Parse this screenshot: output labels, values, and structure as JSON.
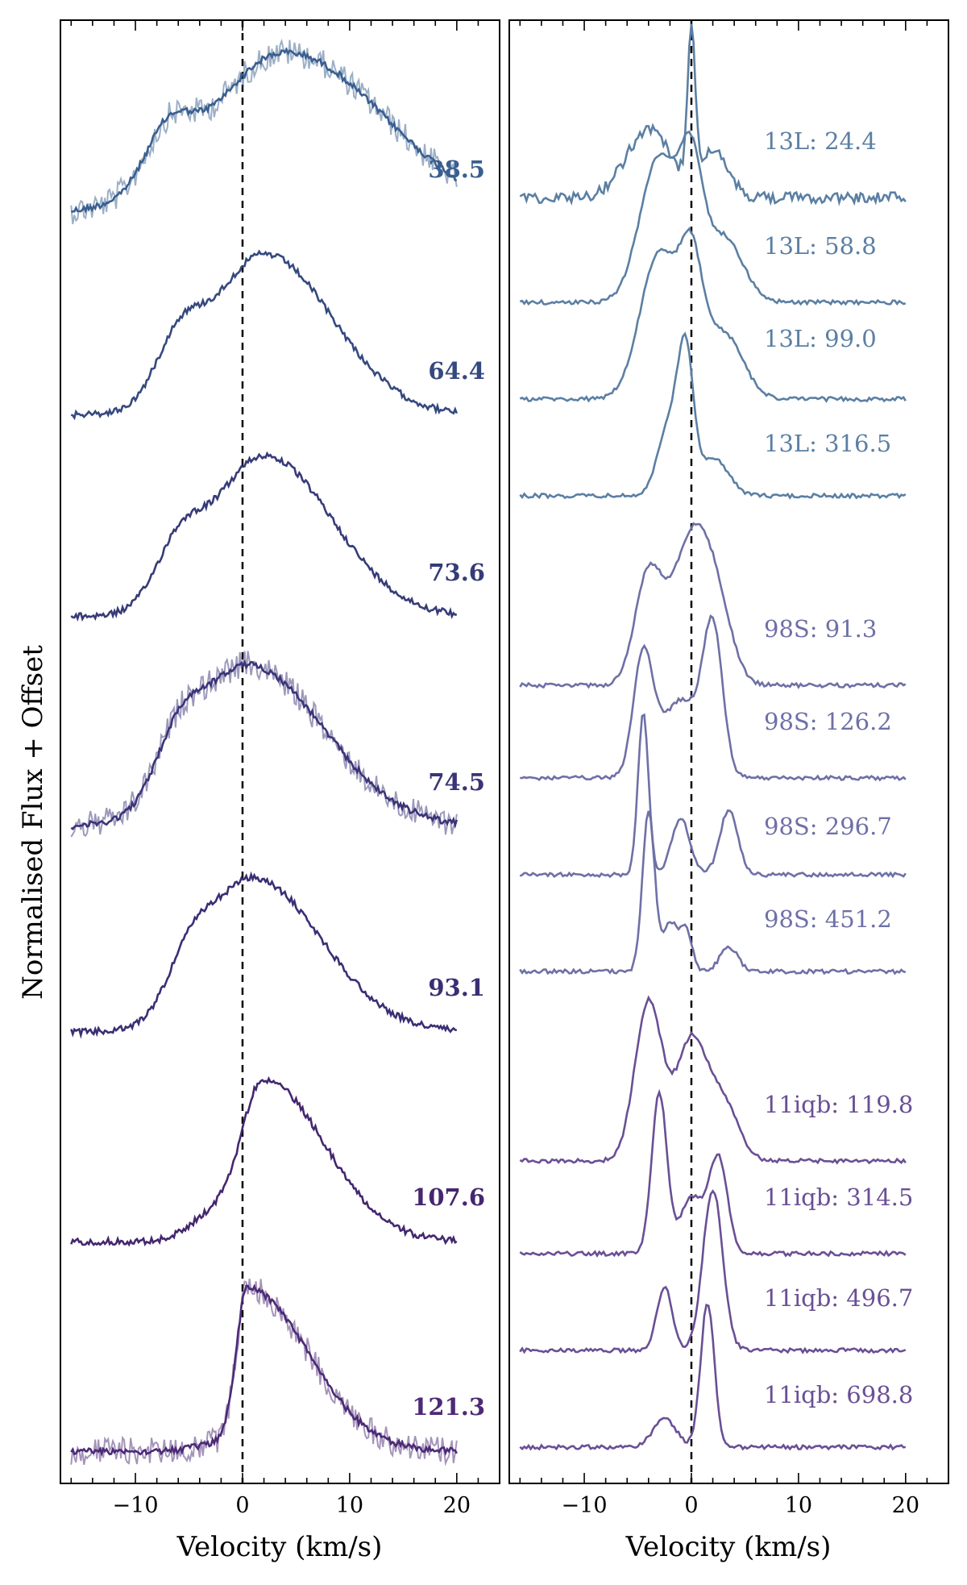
{
  "figure": {
    "ylabel": "Normalised Flux + Offset",
    "colors": {
      "c1": "#3a5f8f",
      "c2": "#35497f",
      "c3": "#363b78",
      "c4": "#3a3478",
      "c5": "#3a2e74",
      "c6": "#44276f",
      "c7": "#4c2a76",
      "r1": "#5b7fa3",
      "r2": "#6e70a6",
      "r3": "#6a4f95"
    }
  },
  "chart_data": [
    {
      "type": "line",
      "panel": "left",
      "xlabel": "Velocity (km/s)",
      "ylabel": "Normalised Flux + Offset",
      "xlim": [
        -17,
        24
      ],
      "xticks": [
        -10,
        0,
        10,
        20
      ],
      "xtick_labels": [
        "−10",
        "0",
        "10",
        "20"
      ],
      "reference_line_x": 0,
      "series": [
        {
          "name": "38.5",
          "label": "38.5",
          "color": "c1",
          "noisy": true,
          "peak": 4,
          "shoulder": [
            -7,
            0.6
          ],
          "width_blue": 10,
          "width_red": 13,
          "base": 0
        },
        {
          "name": "64.4",
          "label": "64.4",
          "color": "c2",
          "noisy": false,
          "peak": 2,
          "shoulder": [
            -6,
            0.65
          ],
          "width_blue": 7,
          "width_red": 9,
          "base": 1
        },
        {
          "name": "73.6",
          "label": "73.6",
          "color": "c3",
          "noisy": false,
          "peak": 2,
          "shoulder": [
            -6,
            0.6
          ],
          "width_blue": 7,
          "width_red": 9,
          "base": 2
        },
        {
          "name": "74.5",
          "label": "74.5",
          "color": "c4",
          "noisy": true,
          "peak": 0.5,
          "shoulder": [
            -6,
            0.6
          ],
          "width_blue": 7,
          "width_red": 10,
          "base": 3
        },
        {
          "name": "93.1",
          "label": "93.1",
          "color": "c5",
          "noisy": false,
          "peak": 1,
          "shoulder": [
            -5,
            0.6
          ],
          "width_blue": 6,
          "width_red": 9,
          "base": 4
        },
        {
          "name": "107.6",
          "label": "107.6",
          "color": "c6",
          "noisy": false,
          "peak": 2,
          "shoulder": [
            -3,
            0.3
          ],
          "width_blue": 3,
          "width_red": 8,
          "base": 5
        },
        {
          "name": "121.3",
          "label": "121.3",
          "color": "c7",
          "noisy": true,
          "peak": 0.5,
          "shoulder": [
            -2,
            0.1
          ],
          "width_blue": 1.5,
          "width_red": 8,
          "base": 6
        }
      ]
    },
    {
      "type": "line",
      "panel": "right",
      "xlabel": "Velocity (km/s)",
      "xlim": [
        -17,
        24
      ],
      "xticks": [
        -10,
        0,
        10,
        20
      ],
      "xtick_labels": [
        "−10",
        "0",
        "10",
        "20"
      ],
      "reference_line_x": 0,
      "series": [
        {
          "name": "13L: 24.4",
          "label": "13L: 24.4",
          "color": "r1",
          "components": [
            [
              -4,
              3,
              0.45
            ],
            [
              0,
              0.5,
              1.0
            ],
            [
              2,
              2,
              0.3
            ]
          ]
        },
        {
          "name": "13L: 58.8",
          "label": "13L: 58.8",
          "color": "r1",
          "components": [
            [
              -3,
              2.5,
              1.0
            ],
            [
              0,
              1.5,
              0.8
            ],
            [
              3,
              2.5,
              0.45
            ]
          ]
        },
        {
          "name": "13L: 99.0",
          "label": "13L: 99.0",
          "color": "r1",
          "components": [
            [
              -3,
              2.5,
              1.0
            ],
            [
              0,
              1.5,
              0.8
            ],
            [
              3,
              2.5,
              0.45
            ]
          ]
        },
        {
          "name": "13L: 316.5",
          "label": "13L: 316.5",
          "color": "r1",
          "components": [
            [
              -2,
              1.5,
              0.6
            ],
            [
              -0.5,
              1.0,
              1.0
            ],
            [
              2,
              2,
              0.3
            ]
          ]
        },
        {
          "name": "98S: 91.3",
          "label": "98S: 91.3",
          "color": "r2",
          "components": [
            [
              -4,
              1.8,
              0.75
            ],
            [
              0,
              2.5,
              1.0
            ],
            [
              2.5,
              2,
              0.4
            ]
          ]
        },
        {
          "name": "98S: 126.2",
          "label": "98S: 126.2",
          "color": "r2",
          "components": [
            [
              -4.5,
              1.3,
              0.85
            ],
            [
              -1,
              2.5,
              0.55
            ],
            [
              2,
              1.3,
              1.0
            ]
          ]
        },
        {
          "name": "98S: 296.7",
          "label": "98S: 296.7",
          "color": "r2",
          "components": [
            [
              -4.5,
              0.7,
              1.0
            ],
            [
              -1,
              1.2,
              0.35
            ],
            [
              3.5,
              1.2,
              0.4
            ]
          ]
        },
        {
          "name": "98S: 451.2",
          "label": "98S: 451.2",
          "color": "r2",
          "components": [
            [
              -4,
              0.8,
              1.0
            ],
            [
              -2,
              1.0,
              0.3
            ],
            [
              -0.5,
              0.8,
              0.25
            ],
            [
              3.5,
              1.2,
              0.15
            ]
          ]
        },
        {
          "name": "11iqb: 119.8",
          "label": "11iqb: 119.8",
          "color": "r3",
          "components": [
            [
              -4,
              1.8,
              1.0
            ],
            [
              0,
              2.0,
              0.75
            ],
            [
              3,
              2.0,
              0.35
            ]
          ]
        },
        {
          "name": "11iqb: 314.5",
          "label": "11iqb: 314.5",
          "color": "r3",
          "components": [
            [
              -3,
              1.0,
              1.0
            ],
            [
              0,
              1.5,
              0.35
            ],
            [
              2.5,
              1.2,
              0.6
            ]
          ]
        },
        {
          "name": "11iqb: 496.7",
          "label": "11iqb: 496.7",
          "color": "r3",
          "components": [
            [
              -2.5,
              1.0,
              0.4
            ],
            [
              2,
              1.3,
              1.0
            ]
          ]
        },
        {
          "name": "11iqb: 698.8",
          "label": "11iqb: 698.8",
          "color": "r3",
          "components": [
            [
              -2.5,
              1.5,
              0.2
            ],
            [
              1.5,
              0.9,
              1.0
            ]
          ]
        }
      ]
    }
  ]
}
